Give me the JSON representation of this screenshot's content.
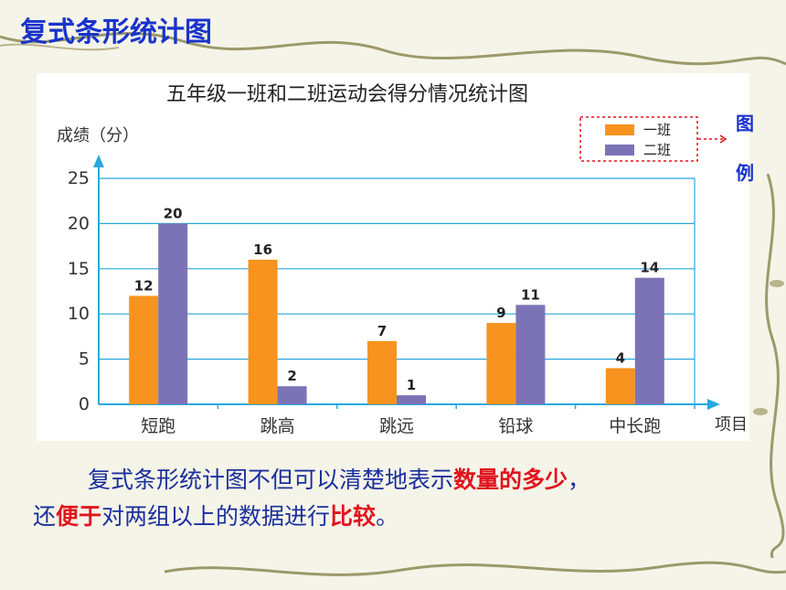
{
  "slide_title": "复式条形统计图",
  "legend_side_label": [
    "图",
    "例"
  ],
  "caption": {
    "p1_a": "复式条形统计图不但可以清楚地表示",
    "p1_hl": "数量的多少",
    "p1_b": "，",
    "p2_a": "还",
    "p2_hl1": "便于",
    "p2_b": "对两组以上的数据进行",
    "p2_hl2": "比较",
    "p2_c": "。"
  },
  "colors": {
    "series1": "#f7931e",
    "series2": "#7b73b6",
    "axis": "#29a8e0",
    "title": "#1a33cc",
    "highlight": "#e0141e"
  },
  "chart_data": {
    "type": "bar",
    "title": "五年级一班和二班运动会得分情况统计图",
    "ylabel": "成绩（分）",
    "xlabel": "项目",
    "categories": [
      "短跑",
      "跳高",
      "跳远",
      "铅球",
      "中长跑"
    ],
    "series": [
      {
        "name": "一班",
        "values": [
          12,
          16,
          7,
          9,
          4
        ]
      },
      {
        "name": "二班",
        "values": [
          20,
          2,
          1,
          11,
          14
        ]
      }
    ],
    "ylim": [
      0,
      25
    ],
    "yticks": [
      0,
      5,
      10,
      15,
      20,
      25
    ],
    "grid": true,
    "legend": "top-right"
  }
}
